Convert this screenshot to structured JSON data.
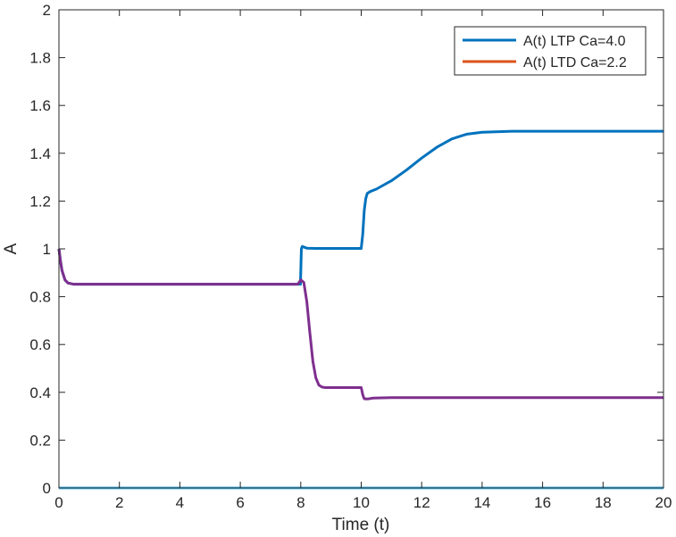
{
  "chart_data": {
    "type": "line",
    "title": "",
    "xlabel": "Time (t)",
    "ylabel": "A",
    "xlim": [
      0,
      20
    ],
    "ylim": [
      0,
      2
    ],
    "xticks": [
      0,
      2,
      4,
      6,
      8,
      10,
      12,
      14,
      16,
      18,
      20
    ],
    "yticks": [
      0,
      0.2,
      0.4,
      0.6,
      0.8,
      1,
      1.2,
      1.4,
      1.6,
      1.8,
      2
    ],
    "xtick_labels": [
      "0",
      "2",
      "4",
      "6",
      "8",
      "10",
      "12",
      "14",
      "16",
      "18",
      "20"
    ],
    "ytick_labels": [
      "0",
      "0.2",
      "0.4",
      "0.6",
      "0.8",
      "1",
      "1.2",
      "1.4",
      "1.6",
      "1.8",
      "2"
    ],
    "grid": false,
    "legend_position": "top-right",
    "series": [
      {
        "name": "A(t) LTP Ca=4.0",
        "color": "#0072BD",
        "in_legend": true,
        "x": [
          0,
          0.05,
          0.1,
          0.2,
          0.3,
          0.5,
          1,
          2,
          4,
          6,
          7.99,
          8.02,
          8.05,
          8.2,
          8.5,
          9,
          10,
          10.05,
          10.1,
          10.15,
          10.2,
          10.3,
          10.5,
          11,
          11.5,
          12,
          12.5,
          13,
          13.5,
          14,
          15,
          16,
          17,
          18,
          19,
          20
        ],
        "y": [
          1.0,
          0.95,
          0.91,
          0.87,
          0.857,
          0.852,
          0.852,
          0.852,
          0.852,
          0.852,
          0.852,
          1.0,
          1.01,
          1.003,
          1.002,
          1.002,
          1.002,
          1.06,
          1.16,
          1.21,
          1.232,
          1.24,
          1.25,
          1.285,
          1.33,
          1.38,
          1.425,
          1.46,
          1.48,
          1.488,
          1.492,
          1.492,
          1.492,
          1.492,
          1.492,
          1.492
        ]
      },
      {
        "name": "A(t) LTD Ca=2.2",
        "color": "#D95319",
        "in_legend": true,
        "x": [
          0,
          20
        ],
        "y": [
          0,
          0
        ]
      },
      {
        "name": "",
        "color": "#7E2F8E",
        "in_legend": false,
        "x": [
          0,
          0.05,
          0.1,
          0.2,
          0.3,
          0.5,
          1,
          2,
          4,
          6,
          7.9,
          8.0,
          8.1,
          8.2,
          8.3,
          8.4,
          8.5,
          8.6,
          8.7,
          8.8,
          9,
          9.5,
          10,
          10.05,
          10.1,
          10.2,
          10.4,
          11,
          12,
          14,
          16,
          18,
          20
        ],
        "y": [
          1.0,
          0.95,
          0.91,
          0.87,
          0.857,
          0.852,
          0.852,
          0.852,
          0.852,
          0.852,
          0.852,
          0.87,
          0.86,
          0.78,
          0.65,
          0.53,
          0.46,
          0.43,
          0.422,
          0.42,
          0.42,
          0.42,
          0.42,
          0.39,
          0.373,
          0.372,
          0.376,
          0.378,
          0.378,
          0.378,
          0.378,
          0.378,
          0.378
        ]
      },
      {
        "name": "",
        "color": "#4DBEEE",
        "in_legend": false,
        "x": [
          0,
          20
        ],
        "y": [
          0,
          0
        ]
      }
    ]
  }
}
